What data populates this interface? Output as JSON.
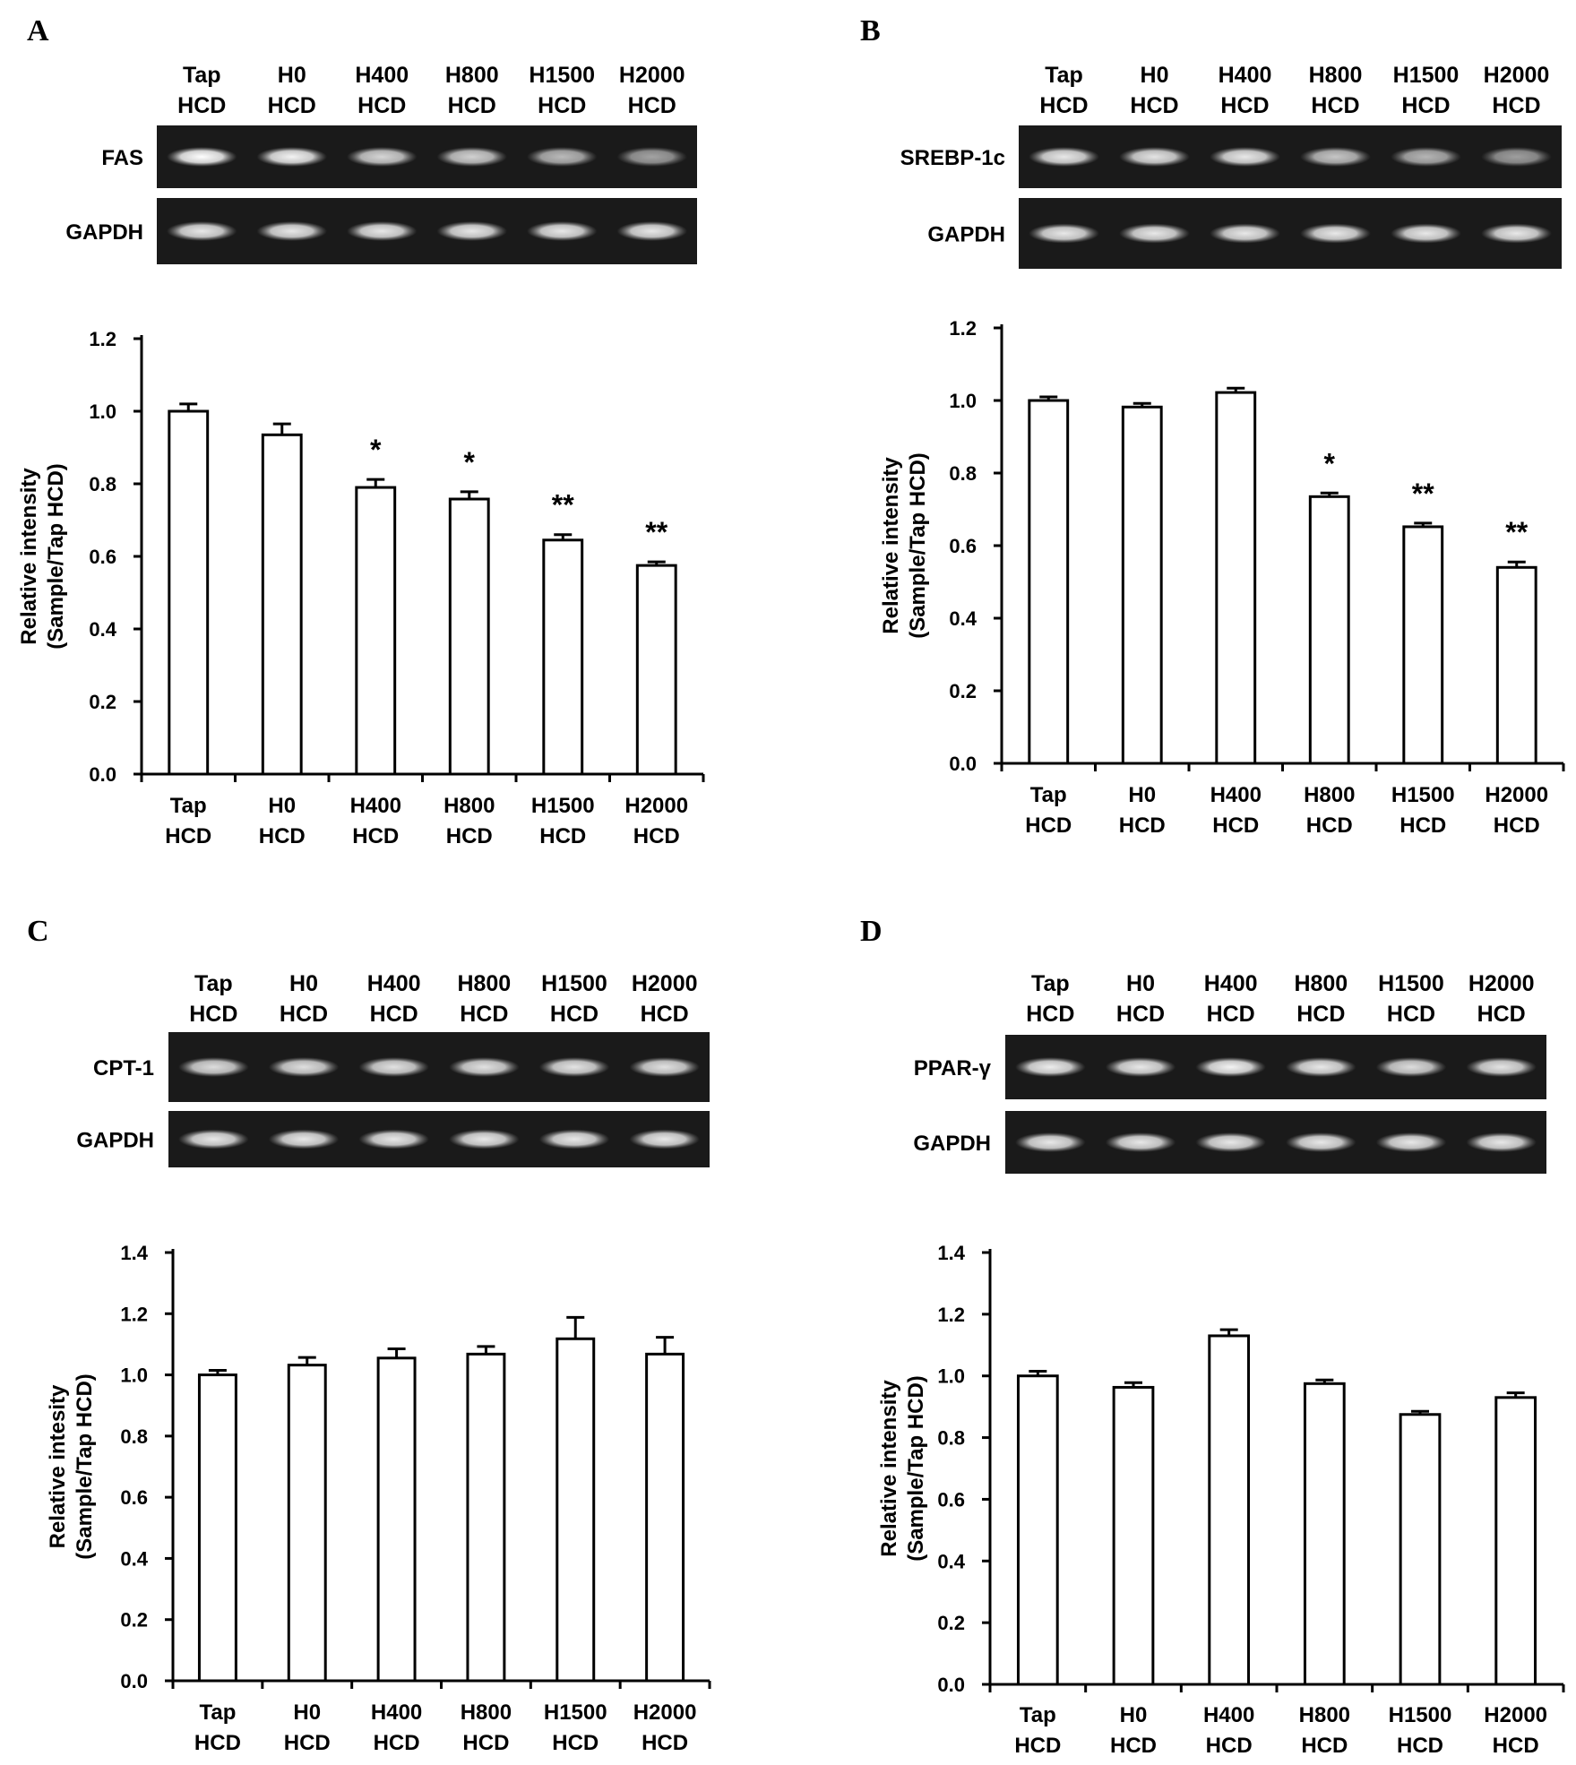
{
  "chart_data": [
    {
      "type": "bar",
      "panel": "A",
      "lane_labels": [
        [
          "Tap",
          "HCD"
        ],
        [
          "H0",
          "HCD"
        ],
        [
          "H400",
          "HCD"
        ],
        [
          "H800",
          "HCD"
        ],
        [
          "H1500",
          "HCD"
        ],
        [
          "H2000",
          "HCD"
        ]
      ],
      "gel_rows": [
        {
          "label": "FAS",
          "band_intensity": [
            1.0,
            0.95,
            0.82,
            0.8,
            0.7,
            0.6
          ]
        },
        {
          "label": "GAPDH",
          "band_intensity": [
            0.9,
            0.9,
            0.9,
            0.9,
            0.9,
            0.9
          ]
        }
      ],
      "categories": [
        [
          "Tap",
          "HCD"
        ],
        [
          "H0",
          "HCD"
        ],
        [
          "H400",
          "HCD"
        ],
        [
          "H800",
          "HCD"
        ],
        [
          "H1500",
          "HCD"
        ],
        [
          "H2000",
          "HCD"
        ]
      ],
      "values": [
        1.0,
        0.935,
        0.79,
        0.758,
        0.645,
        0.575
      ],
      "errors": [
        0.02,
        0.03,
        0.022,
        0.02,
        0.015,
        0.01
      ],
      "significance": [
        "",
        "",
        "*",
        "*",
        "**",
        "**"
      ],
      "ylabel": [
        "Relative intensity",
        "(Sample/Tap HCD)"
      ],
      "ylim": [
        0,
        1.2
      ],
      "yticks": [
        "0.0",
        "0.2",
        "0.4",
        "0.6",
        "0.8",
        "1.0",
        "1.2"
      ]
    },
    {
      "type": "bar",
      "panel": "B",
      "lane_labels": [
        [
          "Tap",
          "HCD"
        ],
        [
          "H0",
          "HCD"
        ],
        [
          "H400",
          "HCD"
        ],
        [
          "H800",
          "HCD"
        ],
        [
          "H1500",
          "HCD"
        ],
        [
          "H2000",
          "HCD"
        ]
      ],
      "gel_rows": [
        {
          "label": "SREBP-1c",
          "band_intensity": [
            0.9,
            0.88,
            0.9,
            0.75,
            0.68,
            0.58
          ]
        },
        {
          "label": "GAPDH",
          "band_intensity": [
            0.9,
            0.9,
            0.9,
            0.9,
            0.9,
            0.9
          ]
        }
      ],
      "categories": [
        [
          "Tap",
          "HCD"
        ],
        [
          "H0",
          "HCD"
        ],
        [
          "H400",
          "HCD"
        ],
        [
          "H800",
          "HCD"
        ],
        [
          "H1500",
          "HCD"
        ],
        [
          "H2000",
          "HCD"
        ]
      ],
      "values": [
        1.0,
        0.982,
        1.022,
        0.735,
        0.652,
        0.54
      ],
      "errors": [
        0.01,
        0.01,
        0.012,
        0.01,
        0.01,
        0.015
      ],
      "significance": [
        "",
        "",
        "",
        "*",
        "**",
        "**"
      ],
      "ylabel": [
        "Relative intensity",
        "(Sample/Tap HCD)"
      ],
      "ylim": [
        0,
        1.2
      ],
      "yticks": [
        "0.0",
        "0.2",
        "0.4",
        "0.6",
        "0.8",
        "1.0",
        "1.2"
      ]
    },
    {
      "type": "bar",
      "panel": "C",
      "lane_labels": [
        [
          "Tap",
          "HCD"
        ],
        [
          "H0",
          "HCD"
        ],
        [
          "H400",
          "HCD"
        ],
        [
          "H800",
          "HCD"
        ],
        [
          "H1500",
          "HCD"
        ],
        [
          "H2000",
          "HCD"
        ]
      ],
      "gel_rows": [
        {
          "label": "CPT-1",
          "band_intensity": [
            0.85,
            0.86,
            0.87,
            0.87,
            0.88,
            0.87
          ]
        },
        {
          "label": "GAPDH",
          "band_intensity": [
            0.9,
            0.9,
            0.9,
            0.9,
            0.9,
            0.9
          ]
        }
      ],
      "categories": [
        [
          "Tap",
          "HCD"
        ],
        [
          "H0",
          "HCD"
        ],
        [
          "H400",
          "HCD"
        ],
        [
          "H800",
          "HCD"
        ],
        [
          "H1500",
          "HCD"
        ],
        [
          "H2000",
          "HCD"
        ]
      ],
      "values": [
        1.0,
        1.032,
        1.055,
        1.068,
        1.118,
        1.068
      ],
      "errors": [
        0.015,
        0.025,
        0.03,
        0.025,
        0.07,
        0.055
      ],
      "significance": [
        "",
        "",
        "",
        "",
        "",
        ""
      ],
      "ylabel": [
        "Relative intesity",
        "(Sample/Tap HCD)"
      ],
      "ylim": [
        0,
        1.4
      ],
      "yticks": [
        "0.0",
        "0.2",
        "0.4",
        "0.6",
        "0.8",
        "1.0",
        "1.2",
        "1.4"
      ]
    },
    {
      "type": "bar",
      "panel": "D",
      "lane_labels": [
        [
          "Tap",
          "HCD"
        ],
        [
          "H0",
          "HCD"
        ],
        [
          "H400",
          "HCD"
        ],
        [
          "H800",
          "HCD"
        ],
        [
          "H1500",
          "HCD"
        ],
        [
          "H2000",
          "HCD"
        ]
      ],
      "gel_rows": [
        {
          "label": "PPAR-γ",
          "band_intensity": [
            0.92,
            0.9,
            0.95,
            0.9,
            0.85,
            0.88
          ]
        },
        {
          "label": "GAPDH",
          "band_intensity": [
            0.9,
            0.9,
            0.9,
            0.9,
            0.9,
            0.9
          ]
        }
      ],
      "categories": [
        [
          "Tap",
          "HCD"
        ],
        [
          "H0",
          "HCD"
        ],
        [
          "H400",
          "HCD"
        ],
        [
          "H800",
          "HCD"
        ],
        [
          "H1500",
          "HCD"
        ],
        [
          "H2000",
          "HCD"
        ]
      ],
      "values": [
        1.0,
        0.963,
        1.13,
        0.975,
        0.875,
        0.93
      ],
      "errors": [
        0.015,
        0.015,
        0.02,
        0.012,
        0.01,
        0.015
      ],
      "significance": [
        "",
        "",
        "",
        "",
        "",
        ""
      ],
      "ylabel": [
        "Relative intensity",
        "(Sample/Tap HCD)"
      ],
      "ylim": [
        0,
        1.4
      ],
      "yticks": [
        "0.0",
        "0.2",
        "0.4",
        "0.6",
        "0.8",
        "1.0",
        "1.2",
        "1.4"
      ]
    }
  ]
}
